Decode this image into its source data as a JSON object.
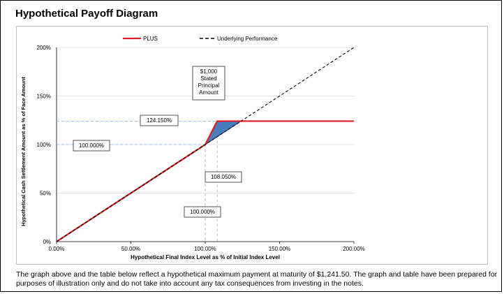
{
  "title": "Hypothetical Payoff Diagram",
  "caption": "The graph above and the table below reflect a hypothetical maximum payment at maturity of $1,241.50. The graph and table have been prepared for purposes of illustration only and do not take into account any tax consequences from investing in the notes.",
  "colors": {
    "plus": "#e31b23",
    "underlying": "#000000",
    "fill": "#4a7ebb",
    "grid": "#d9d9d9",
    "guide": "#8db3e2"
  },
  "chart_data": {
    "type": "line",
    "xlabel": "Hypothetical Final Index Level as % of Initial Index Level",
    "ylabel": "Hypothetical Cash Settlement Amount as % of Face Amount",
    "xlim": [
      0,
      200
    ],
    "ylim": [
      0,
      200
    ],
    "x_ticks": [
      0,
      50,
      100,
      150,
      200
    ],
    "x_tick_labels": [
      "0.00%",
      "50.00%",
      "100.00%",
      "150.00%",
      "200.00%"
    ],
    "y_ticks": [
      0,
      50,
      100,
      150,
      200
    ],
    "y_tick_labels": [
      "0%",
      "50%",
      "100%",
      "150%",
      "200%"
    ],
    "legend": {
      "placement": "top-center",
      "entries": [
        "PLUS",
        "Underlying Performance"
      ]
    },
    "series": [
      {
        "name": "PLUS",
        "style": "solid",
        "x": [
          0,
          100,
          108.05,
          200
        ],
        "y": [
          0,
          100,
          124.15,
          124.15
        ]
      },
      {
        "name": "Underlying Performance",
        "style": "dashed",
        "x": [
          0,
          200
        ],
        "y": [
          0,
          200
        ]
      }
    ],
    "shaded_region": {
      "x": [
        100,
        108.05,
        124.15
      ],
      "y": [
        100,
        124.15,
        124.15
      ]
    },
    "annotations": {
      "principal_box": {
        "lines": [
          "$1,000",
          "Stated",
          "Principal",
          "Amount"
        ]
      },
      "cap_label": "124.150%",
      "principal_label_y": "100.000%",
      "cap_x_label": "108.050%",
      "principal_label_x": "100.000%",
      "cap_x": 108.05,
      "cap_y": 124.15,
      "principal_value": 100
    }
  }
}
